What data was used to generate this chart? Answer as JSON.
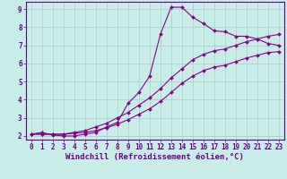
{
  "xlabel": "Windchill (Refroidissement éolien,°C)",
  "background_color": "#c8ede8",
  "line_color": "#880088",
  "grid_color": "#a8ccc8",
  "axis_color": "#660088",
  "xlim": [
    -0.5,
    23.5
  ],
  "ylim": [
    1.8,
    9.4
  ],
  "xticks": [
    0,
    1,
    2,
    3,
    4,
    5,
    6,
    7,
    8,
    9,
    10,
    11,
    12,
    13,
    14,
    15,
    16,
    17,
    18,
    19,
    20,
    21,
    22,
    23
  ],
  "yticks": [
    2,
    3,
    4,
    5,
    6,
    7,
    8,
    9
  ],
  "line1_x": [
    0,
    1,
    2,
    3,
    4,
    5,
    6,
    7,
    8,
    9,
    10,
    11,
    12,
    13,
    14,
    15,
    16,
    17,
    18,
    19,
    20,
    21,
    22,
    23
  ],
  "line1_y": [
    2.1,
    2.2,
    2.05,
    2.0,
    2.0,
    2.1,
    2.2,
    2.5,
    2.75,
    3.8,
    4.4,
    5.3,
    7.6,
    9.1,
    9.1,
    8.55,
    8.2,
    7.8,
    7.75,
    7.5,
    7.5,
    7.35,
    7.1,
    7.0
  ],
  "line2_x": [
    0,
    1,
    2,
    3,
    4,
    5,
    6,
    7,
    8,
    9,
    10,
    11,
    12,
    13,
    14,
    15,
    16,
    17,
    18,
    19,
    20,
    21,
    22,
    23
  ],
  "line2_y": [
    2.1,
    2.1,
    2.1,
    2.1,
    2.2,
    2.3,
    2.5,
    2.7,
    3.0,
    3.3,
    3.7,
    4.1,
    4.6,
    5.2,
    5.7,
    6.2,
    6.5,
    6.7,
    6.8,
    7.0,
    7.2,
    7.35,
    7.5,
    7.6
  ],
  "line3_x": [
    0,
    1,
    2,
    3,
    4,
    5,
    6,
    7,
    8,
    9,
    10,
    11,
    12,
    13,
    14,
    15,
    16,
    17,
    18,
    19,
    20,
    21,
    22,
    23
  ],
  "line3_y": [
    2.1,
    2.1,
    2.1,
    2.1,
    2.15,
    2.2,
    2.3,
    2.45,
    2.65,
    2.9,
    3.2,
    3.5,
    3.9,
    4.4,
    4.9,
    5.3,
    5.6,
    5.8,
    5.9,
    6.1,
    6.3,
    6.45,
    6.6,
    6.65
  ],
  "marker": "D",
  "markersize": 2.0,
  "linewidth": 0.8,
  "tick_labelsize": 5.5,
  "xlabel_fontsize": 6.5
}
